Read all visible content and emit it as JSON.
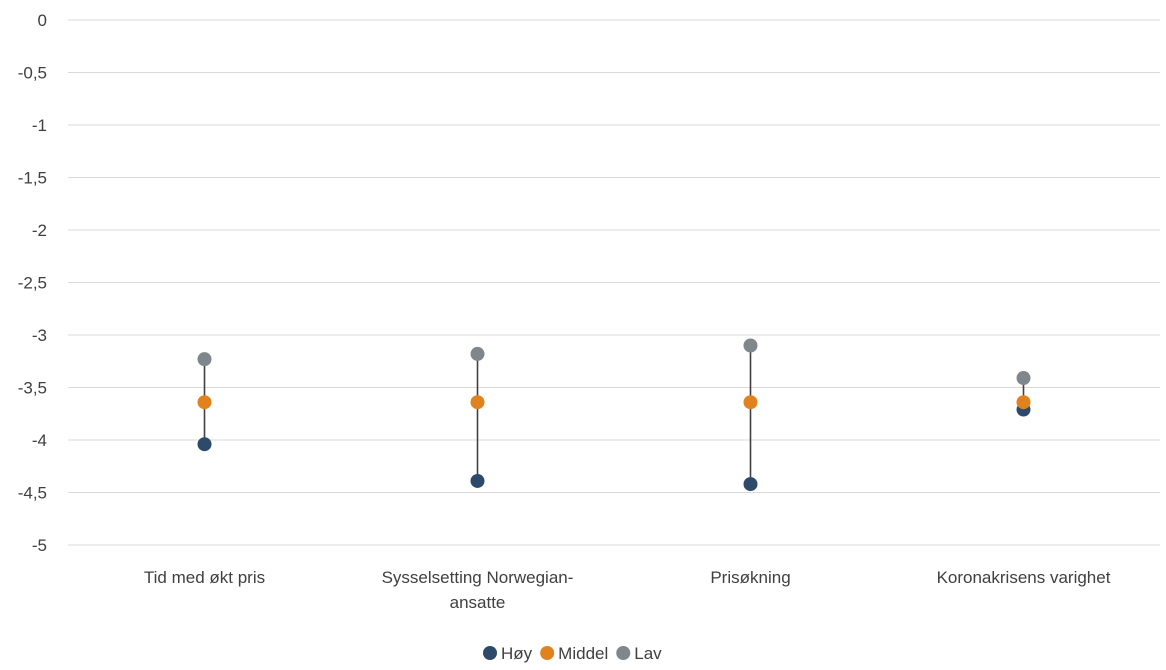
{
  "chart_data": {
    "type": "scatter",
    "subtype": "dot-range",
    "categories": [
      "Tid med økt pris",
      "Sysselsetting Norwegian-ansatte",
      "Prisøkning",
      "Koronakrisens varighet"
    ],
    "category_lines": [
      [
        "Tid med økt pris"
      ],
      [
        "Sysselsetting Norwegian-",
        "ansatte"
      ],
      [
        "Prisøkning"
      ],
      [
        "Koronakrisens varighet"
      ]
    ],
    "series": [
      {
        "name": "Høy",
        "color": "#2E4A6B",
        "values": [
          -4.04,
          -4.39,
          -4.42,
          -3.71
        ]
      },
      {
        "name": "Middel",
        "color": "#E0821E",
        "values": [
          -3.64,
          -3.64,
          -3.64,
          -3.64
        ]
      },
      {
        "name": "Lav",
        "color": "#7F868C",
        "values": [
          -3.23,
          -3.18,
          -3.1,
          -3.41
        ]
      }
    ],
    "ylim": [
      -5,
      0
    ],
    "yticks": [
      0,
      -0.5,
      -1,
      -1.5,
      -2,
      -2.5,
      -3,
      -3.5,
      -4,
      -4.5,
      -5
    ],
    "ytick_labels": [
      "0",
      "-0,5",
      "-1",
      "-1,5",
      "-2",
      "-2,5",
      "-3",
      "-3,5",
      "-4",
      "-4,5",
      "-5"
    ],
    "grid": true,
    "legend_position": "bottom",
    "title": "",
    "xlabel": "",
    "ylabel": ""
  }
}
